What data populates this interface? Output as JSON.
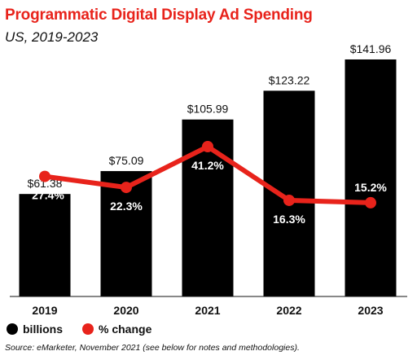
{
  "chart_data": {
    "type": "bar",
    "title": "Programmatic Digital Display Ad Spending",
    "subtitle": "US, 2019-2023",
    "categories": [
      "2019",
      "2020",
      "2021",
      "2022",
      "2023"
    ],
    "series": [
      {
        "name": "billions",
        "type": "bar",
        "values": [
          61.38,
          75.09,
          105.99,
          123.22,
          141.96
        ],
        "labels": [
          "$61.38",
          "$75.09",
          "$105.99",
          "$123.22",
          "$141.96"
        ],
        "color": "#000000"
      },
      {
        "name": "% change",
        "type": "line",
        "values": [
          27.4,
          22.3,
          41.2,
          16.3,
          15.2
        ],
        "labels": [
          "27.4%",
          "22.3%",
          "41.2%",
          "16.3%",
          "15.2%"
        ],
        "color": "#e8231b"
      }
    ],
    "legend_position": "bottom-left",
    "grid": false
  },
  "source": "Source: eMarketer, November 2021 (see below for notes and methodologies).",
  "colors": {
    "title": "#e8231b",
    "bars": "#000000",
    "line": "#e8231b"
  }
}
